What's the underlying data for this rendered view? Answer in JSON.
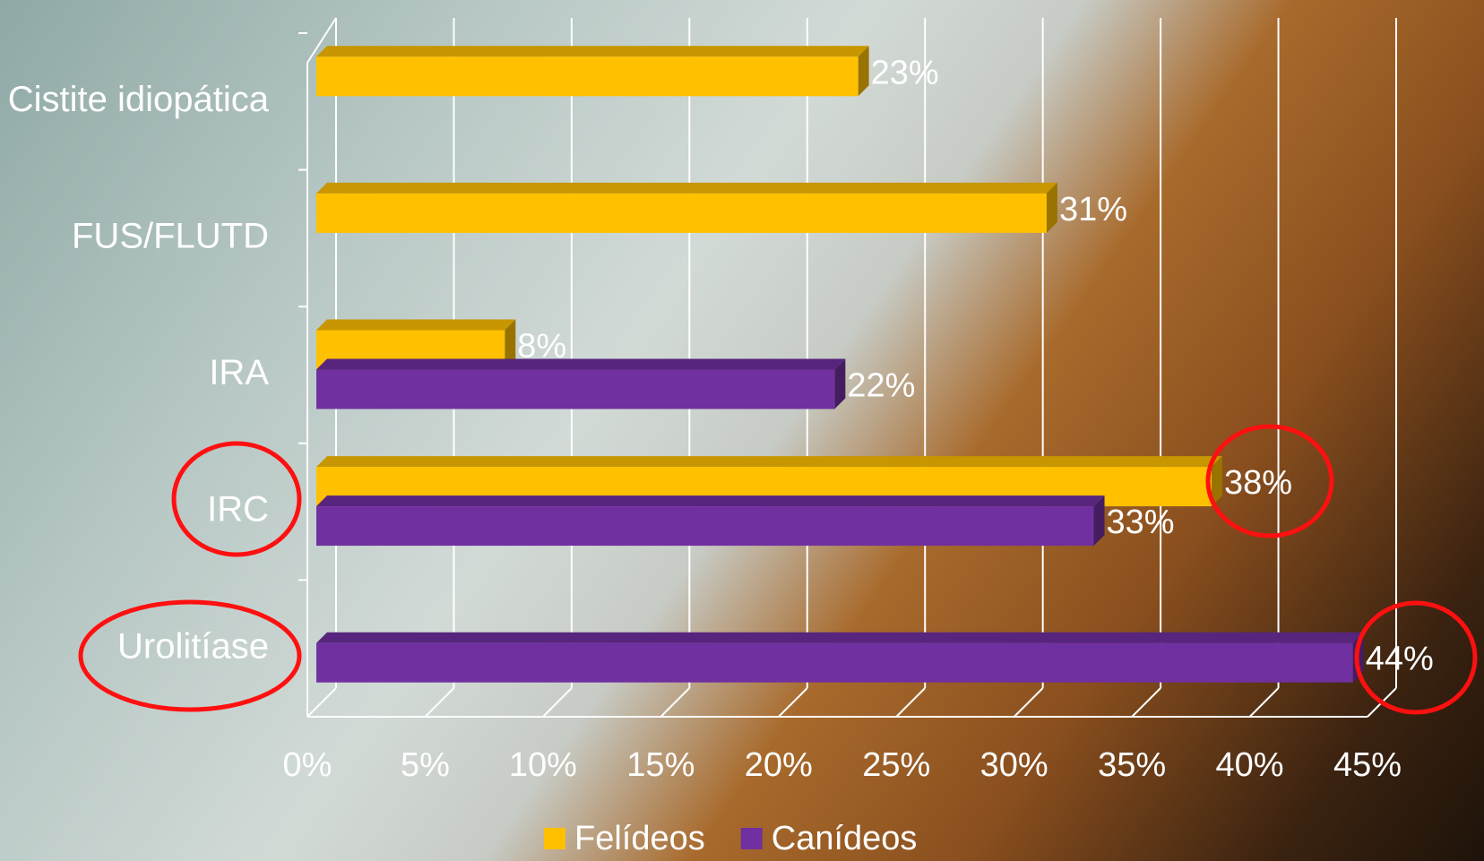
{
  "chart_data": {
    "type": "bar3d-horizontal",
    "categories": [
      "Cistite idiopática",
      "FUS/FLUTD",
      "IRA",
      "IRC",
      "Urolitíase"
    ],
    "series": [
      {
        "name": "Felídeos",
        "color": "#FFC000",
        "values": [
          23,
          31,
          8,
          38,
          null
        ],
        "value_labels": [
          "23%",
          "31%",
          "8%",
          "38%",
          null
        ]
      },
      {
        "name": "Canídeos",
        "color": "#7030A0",
        "values": [
          null,
          null,
          22,
          33,
          44
        ],
        "value_labels": [
          null,
          null,
          "22%",
          "33%",
          "44%"
        ]
      }
    ],
    "xlim": [
      0,
      45
    ],
    "xticks": [
      {
        "value": 0,
        "label": "0%"
      },
      {
        "value": 5,
        "label": "5%"
      },
      {
        "value": 10,
        "label": "10%"
      },
      {
        "value": 15,
        "label": "15%"
      },
      {
        "value": 20,
        "label": "20%"
      },
      {
        "value": 25,
        "label": "25%"
      },
      {
        "value": 30,
        "label": "30%"
      },
      {
        "value": 35,
        "label": "35%"
      },
      {
        "value": 40,
        "label": "40%"
      },
      {
        "value": 45,
        "label": "45%"
      }
    ],
    "grid": true,
    "legend": "bottom"
  }
}
